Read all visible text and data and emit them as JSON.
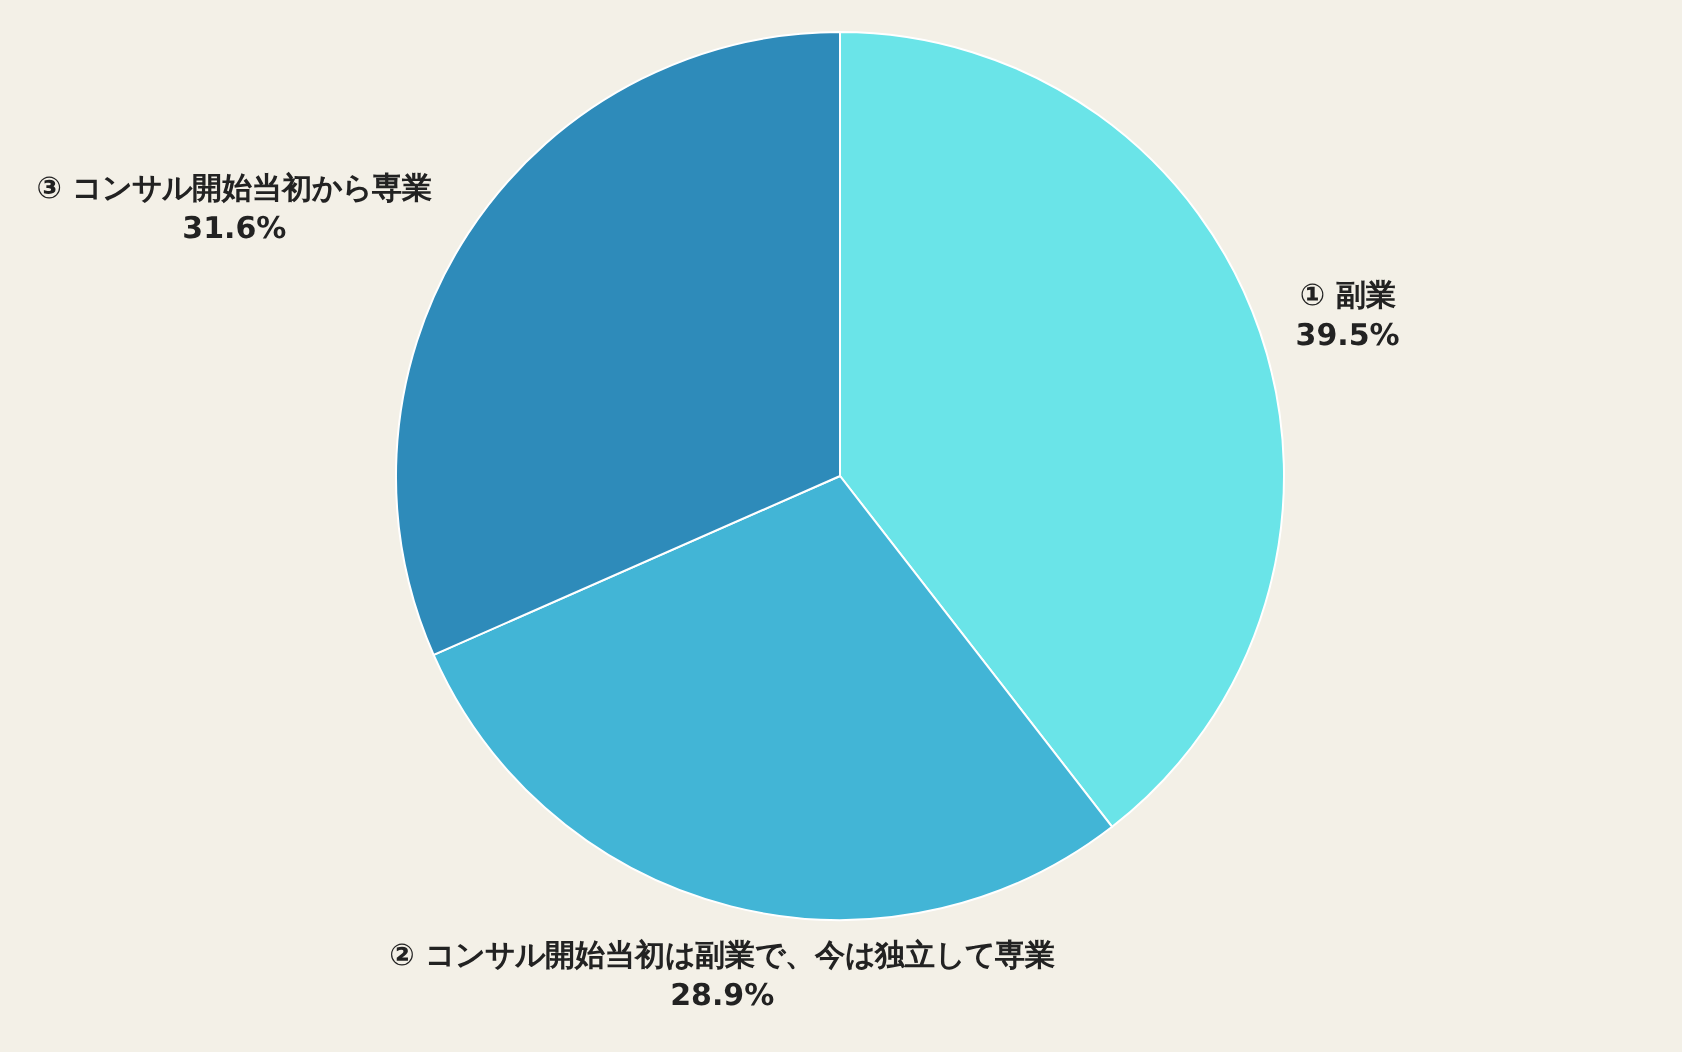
{
  "chart_data": {
    "type": "pie",
    "categories": [
      "① 副業",
      "② コンサル開始当初は副業で、今は独立して専業",
      "③ コンサル開始当初から専業"
    ],
    "values": [
      39.5,
      28.9,
      31.6
    ],
    "colors": [
      "#6ae4e8",
      "#42b5d6",
      "#2e8bba"
    ],
    "value_labels": [
      "39.5%",
      "28.9%",
      "31.6%"
    ]
  }
}
